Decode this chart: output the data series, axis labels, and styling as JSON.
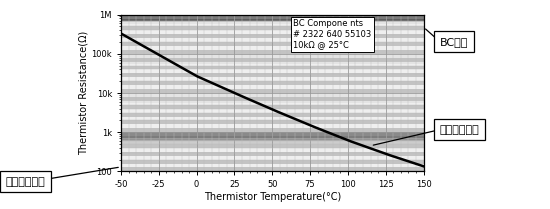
{
  "xlabel": "Thermistor Temperature(°C)",
  "ylabel": "Thermistor Resistance(Ω)",
  "xlim": [
    -50,
    150
  ],
  "ylim_log": [
    100,
    1000000
  ],
  "xticks": [
    -50,
    -25,
    0,
    25,
    50,
    75,
    100,
    125,
    150
  ],
  "curve_x": [
    -50,
    -25,
    0,
    25,
    50,
    75,
    100,
    125,
    150
  ],
  "curve_y": [
    330000,
    95000,
    27000,
    10000,
    3800,
    1500,
    620,
    280,
    135
  ],
  "annotation_text": "BC Compone nts\n# 2322 640 55103\n10kΩ @ 25°C",
  "label_left": "熱敏電阻阻抗",
  "label_right": "熱敏電阻溫度",
  "label_top_right": "BC元件",
  "bg_color": "#ffffff",
  "line_color": "#000000",
  "grid_major_color": "#aaaaaa",
  "grid_minor_color": "#cccccc",
  "band_colors": [
    "#000000",
    "#555555",
    "#888888",
    "#bbbbbb"
  ],
  "fig_width": 5.5,
  "fig_height": 2.09,
  "dpi": 100
}
